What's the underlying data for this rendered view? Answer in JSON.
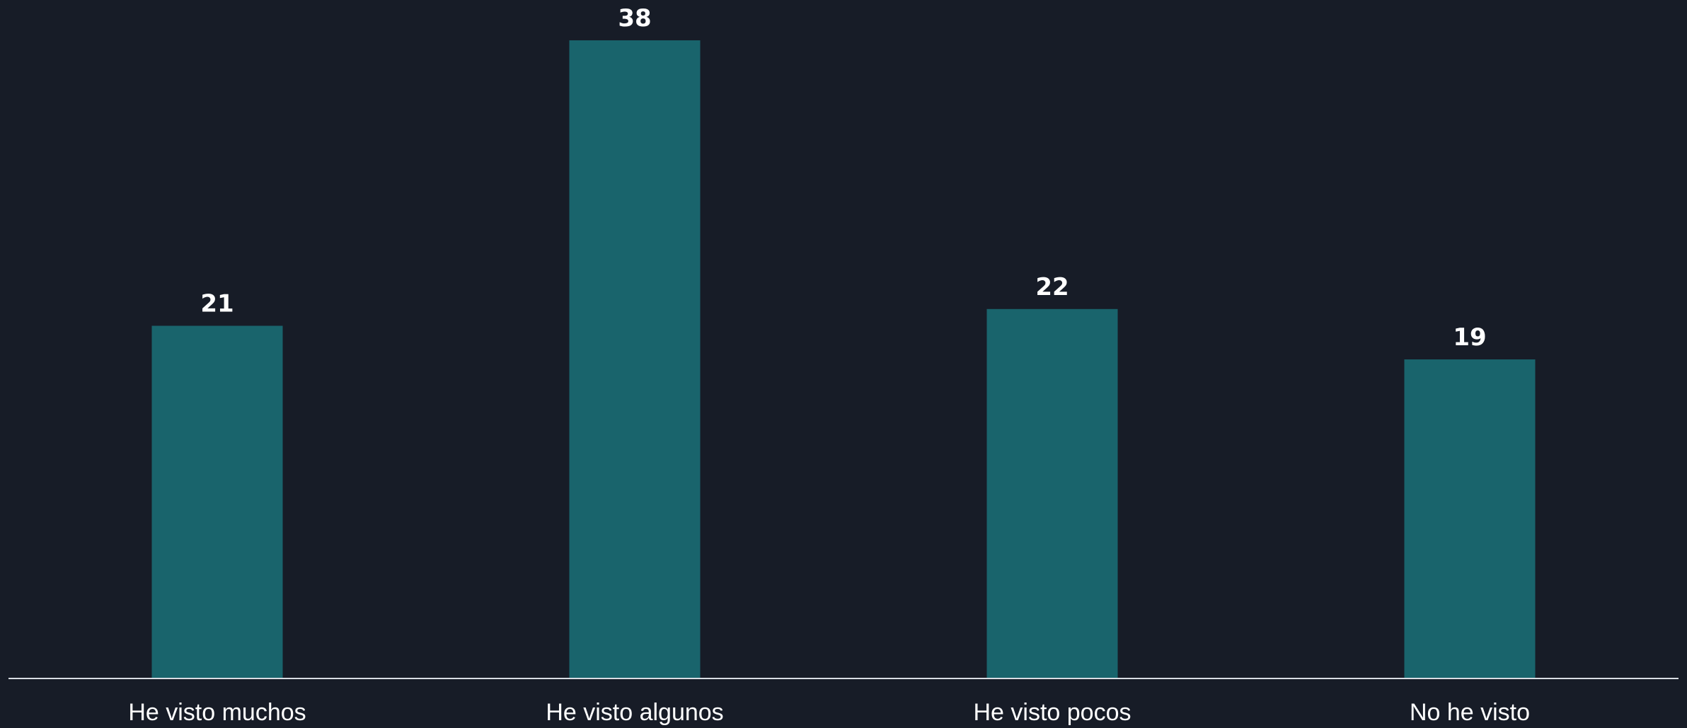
{
  "colors": {
    "background": "#171c27",
    "bar": "#19646c",
    "axis": "#d9dde3",
    "text": "#ffffff"
  },
  "chart_data": {
    "type": "bar",
    "title": "",
    "xlabel": "",
    "ylabel": "",
    "categories": [
      "He visto muchos",
      "He visto algunos",
      "He visto pocos",
      "No he visto"
    ],
    "values": [
      21,
      38,
      22,
      19
    ],
    "data_labels": [
      "21",
      "38",
      "22",
      "19"
    ],
    "ylim": [
      0,
      38
    ],
    "grid": false,
    "legend": "none"
  }
}
